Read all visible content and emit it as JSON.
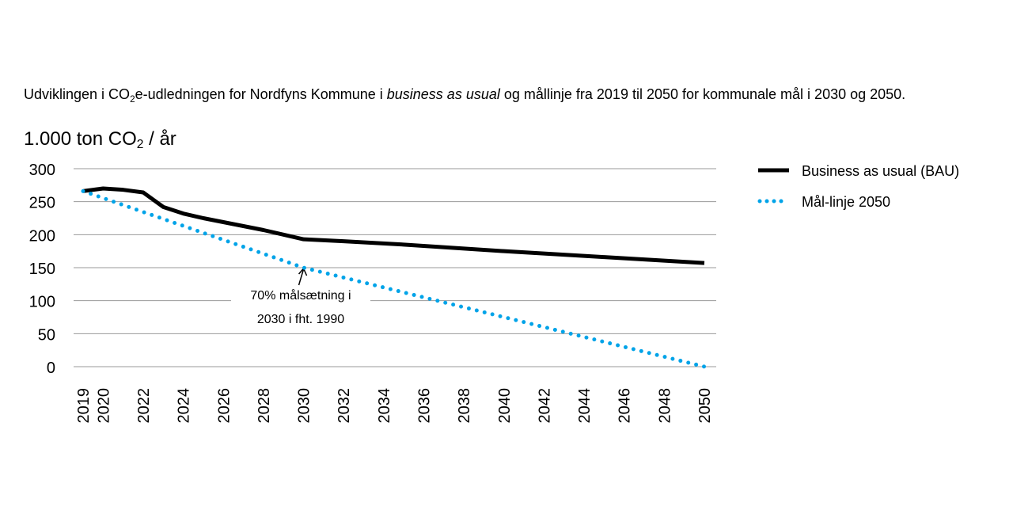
{
  "chart_data": {
    "type": "line",
    "title_parts": {
      "a": "Udviklingen i CO",
      "sub": "2",
      "b": "e-udledningen for Nordfyns Kommune i ",
      "italic": "business as usual",
      "c": " og mållinje fra 2019 til 2050 for kommunale mål i 2030 og 2050."
    },
    "ylabel_parts": {
      "a": "1.000 ton CO",
      "sub": "2",
      "b": " / år"
    },
    "ylim": [
      0,
      300
    ],
    "yticks": [
      0,
      50,
      100,
      150,
      200,
      250,
      300
    ],
    "xlim": [
      2019,
      2050
    ],
    "xticks": [
      2019,
      2020,
      2022,
      2024,
      2026,
      2028,
      2030,
      2032,
      2034,
      2036,
      2038,
      2040,
      2042,
      2044,
      2046,
      2048,
      2050
    ],
    "grid": true,
    "legend_position": "right",
    "series": [
      {
        "name": "Business as usual (BAU)",
        "color": "#000000",
        "style": "solid",
        "x": [
          2019,
          2020,
          2021,
          2022,
          2023,
          2024,
          2025,
          2026,
          2027,
          2028,
          2029,
          2030,
          2032,
          2035,
          2040,
          2045,
          2050
        ],
        "y": [
          266,
          270,
          268,
          264,
          242,
          232,
          225,
          219,
          213,
          207,
          200,
          193,
          190,
          185,
          175,
          166,
          157
        ]
      },
      {
        "name": "Mål-linje 2050",
        "color": "#00a3e8",
        "style": "dotted",
        "x": [
          2019,
          2030,
          2050
        ],
        "y": [
          266,
          150,
          0
        ]
      }
    ],
    "annotation": {
      "line1": "70% målsætning i",
      "line2": "2030 i fht. 1990",
      "x": 2030,
      "y": 150
    }
  }
}
